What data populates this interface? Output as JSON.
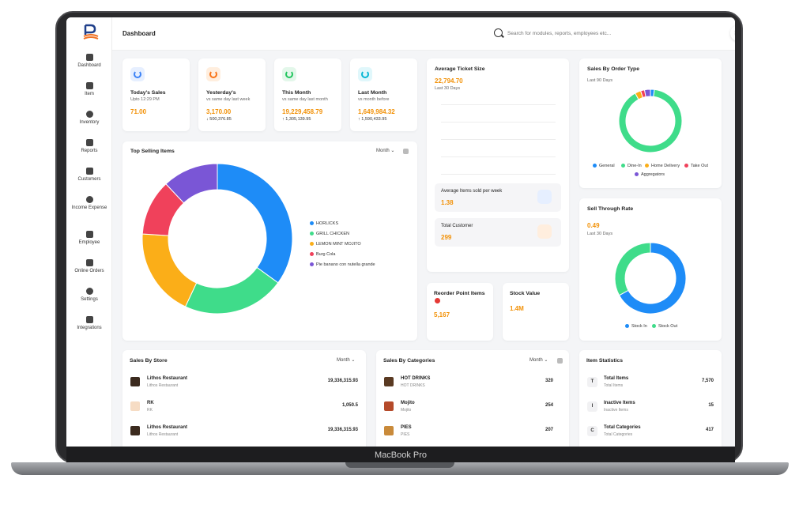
{
  "device_label": "MacBook Pro",
  "header": {
    "title": "Dashboard",
    "search_placeholder": "Search for modules, reports, employees etc..."
  },
  "sidebar": {
    "items": [
      {
        "label": "Dashboard",
        "icon": "dashboard-icon"
      },
      {
        "label": "Item",
        "icon": "item-icon"
      },
      {
        "label": "Inventory",
        "icon": "inventory-icon"
      },
      {
        "label": "Reports",
        "icon": "reports-icon"
      },
      {
        "label": "Customers",
        "icon": "customers-icon"
      },
      {
        "label": "Income Expense",
        "icon": "income-expense-icon"
      },
      {
        "label": "Employee",
        "icon": "employee-icon"
      },
      {
        "label": "Online Orders",
        "icon": "online-orders-icon"
      },
      {
        "label": "Settings",
        "icon": "settings-icon"
      },
      {
        "label": "Integrations",
        "icon": "integrations-icon"
      }
    ]
  },
  "stats": [
    {
      "title": "Today's Sales",
      "subtitle": "Upto 12:29 PM",
      "value": "71.00",
      "delta": "",
      "icon_color": "#3b82f6",
      "icon_bg": "#e6efff"
    },
    {
      "title": "Yesterday's",
      "subtitle": "vs same day last week",
      "value": "3,170.00",
      "delta": "↓ 500,376.85",
      "icon_color": "#f97316",
      "icon_bg": "#ffeede"
    },
    {
      "title": "This Month",
      "subtitle": "vs same day last month",
      "value": "19,229,458.79",
      "delta": "↑ 1,305,139.95",
      "icon_color": "#22c55e",
      "icon_bg": "#e3f7ea"
    },
    {
      "title": "Last Month",
      "subtitle": "vs month before",
      "value": "1,649,984.32",
      "delta": "↑ 1,590,433.95",
      "icon_color": "#06b6d4",
      "icon_bg": "#e0f7fb"
    }
  ],
  "top_selling": {
    "title": "Top Selling Items",
    "period": "Month",
    "chart_data": {
      "type": "pie",
      "categories": [
        "HORLICKS",
        "GRILL CHICKEN",
        "LEMON MINT MOJITO",
        "Burg Cola",
        "Pie banano con nutella grande"
      ],
      "values": [
        35,
        22,
        19,
        12,
        12
      ],
      "colors": [
        "#1e8cf7",
        "#3fdc8a",
        "#fbae18",
        "#f0415b",
        "#7a56d6"
      ],
      "legend": "right"
    }
  },
  "avg_ticket": {
    "title": "Average Ticket Size",
    "value": "22,794.70",
    "period": "Last 30 Days"
  },
  "avg_items": {
    "title": "Average Items sold per week",
    "value": "1.38"
  },
  "total_customer": {
    "title": "Total Customer",
    "value": "299"
  },
  "reorder": {
    "title": "Reorder Point Items",
    "value": "5,167"
  },
  "stock_value": {
    "title": "Stock Value",
    "value": "1.4M"
  },
  "order_type": {
    "title": "Sales By Order Type",
    "period": "Last 90 Days",
    "chart_data": {
      "type": "pie",
      "categories": [
        "General",
        "Dine-In",
        "Home Delivery",
        "Take Out",
        "Aggregators"
      ],
      "values": [
        2,
        90,
        3,
        2,
        3
      ],
      "colors": [
        "#1e8cf7",
        "#3fdc8a",
        "#fbae18",
        "#f0415b",
        "#7a56d6"
      ],
      "legend": "bottom"
    }
  },
  "sell_through": {
    "title": "Sell Through Rate",
    "value": "0.49",
    "period": "Last 30 Days",
    "chart_data": {
      "type": "pie",
      "categories": [
        "Stock In",
        "Stock Out"
      ],
      "values": [
        67,
        33
      ],
      "colors": [
        "#1e8cf7",
        "#3fdc8a"
      ],
      "legend": "bottom"
    }
  },
  "sales_by_store": {
    "title": "Sales By Store",
    "period": "Month",
    "rows": [
      {
        "name": "Lithos Restaurant",
        "sub": "Lithos Restaurant",
        "value": "19,336,315.93",
        "logo": "#3b2a1e"
      },
      {
        "name": "RK",
        "sub": "RK",
        "value": "1,050.5",
        "logo": "#f6dcc4"
      },
      {
        "name": "Lithos Restaurant",
        "sub": "Lithos Restaurant",
        "value": "19,336,315.93",
        "logo": "#3b2a1e"
      }
    ]
  },
  "sales_by_categories": {
    "title": "Sales By Categories",
    "period": "Month",
    "rows": [
      {
        "name": "HOT DRINKS",
        "sub": "HOT DRINKS",
        "value": "320",
        "logo": "#5a3a22"
      },
      {
        "name": "Mojito",
        "sub": "Mojito",
        "value": "254",
        "logo": "#b54a2a"
      },
      {
        "name": "PIES",
        "sub": "PIES",
        "value": "207",
        "logo": "#c98a3a"
      }
    ]
  },
  "item_statistics": {
    "title": "Item Statistics",
    "rows": [
      {
        "letter": "T",
        "name": "Total Items",
        "sub": "Total Items",
        "value": "7,570"
      },
      {
        "letter": "I",
        "name": "Inactive Items",
        "sub": "Inactive Items",
        "value": "15"
      },
      {
        "letter": "C",
        "name": "Total Categories",
        "sub": "Total Categories",
        "value": "417"
      }
    ]
  }
}
